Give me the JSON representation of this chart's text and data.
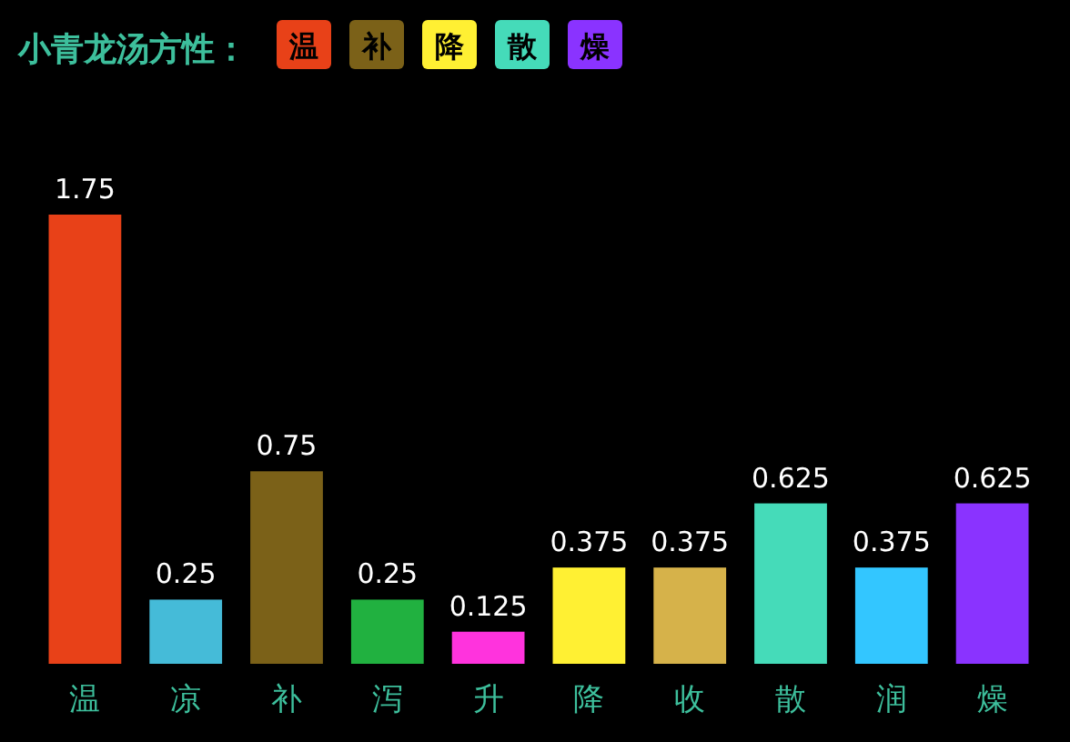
{
  "chart_data": {
    "type": "bar",
    "title": "小青龙汤方性：",
    "annotations": [
      "温",
      "补",
      "降",
      "散",
      "燥"
    ],
    "categories": [
      "温",
      "凉",
      "补",
      "泻",
      "升",
      "降",
      "收",
      "散",
      "润",
      "燥"
    ],
    "values": [
      1.75,
      0.25,
      0.75,
      0.25,
      0.125,
      0.375,
      0.375,
      0.625,
      0.375,
      0.625
    ],
    "colors": [
      "#e84118",
      "#45bbd8",
      "#7b6118",
      "#21b140",
      "#ff33dd",
      "#fff033",
      "#d6b24a",
      "#45dbb9",
      "#33c6ff",
      "#8a33ff"
    ],
    "data_labels": true
  }
}
